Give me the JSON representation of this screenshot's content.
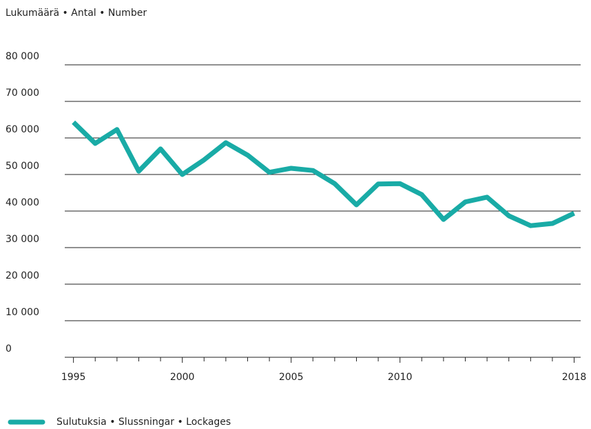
{
  "chart_data": {
    "type": "line",
    "title": "Lukumäärä • Antal • Number",
    "x": [
      1995,
      1996,
      1997,
      1998,
      1999,
      2000,
      2001,
      2002,
      2003,
      2004,
      2005,
      2006,
      2007,
      2008,
      2009,
      2010,
      2011,
      2012,
      2013,
      2014,
      2015,
      2016,
      2017,
      2018
    ],
    "series": [
      {
        "name": "Sulutuksia • Slussningar • Lockages",
        "color": "#19aba6",
        "values": [
          64300,
          58500,
          62300,
          50900,
          57000,
          50000,
          54000,
          58700,
          55300,
          50600,
          51700,
          51100,
          47500,
          41700,
          47400,
          47500,
          44500,
          37700,
          42500,
          43800,
          38700,
          36000,
          36600,
          39400
        ]
      }
    ],
    "xlim": [
      1994.6,
      2018.3
    ],
    "xticks": [
      1995,
      2000,
      2005,
      2010,
      2018
    ],
    "xminorticks": [
      1996,
      1997,
      1998,
      1999,
      2001,
      2002,
      2003,
      2004,
      2006,
      2007,
      2008,
      2009,
      2011,
      2012,
      2013,
      2014,
      2015,
      2016,
      2017
    ],
    "ylim": [
      0,
      80000
    ],
    "yticks": [
      0,
      {
        "value": 10000,
        "label": "10 000"
      },
      {
        "value": 20000,
        "label": "20 000"
      },
      {
        "value": 30000,
        "label": "30 000"
      },
      {
        "value": 40000,
        "label": "40 000"
      },
      {
        "value": 50000,
        "label": "50 000"
      },
      {
        "value": 60000,
        "label": "60 000"
      },
      {
        "value": 70000,
        "label": "70 000"
      },
      {
        "value": 80000,
        "label": "80 000"
      }
    ],
    "grid": true,
    "legend": "bottom-left"
  }
}
